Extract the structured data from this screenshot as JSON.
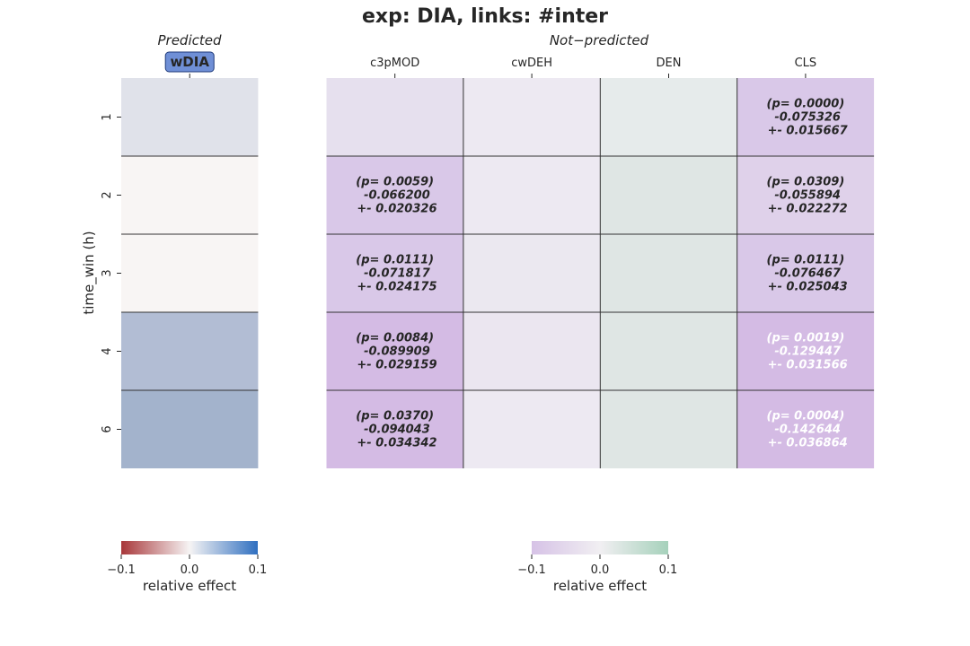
{
  "title": "exp: DIA, links: #inter",
  "ylabel": "time_win (h)",
  "rows": [
    "1",
    "2",
    "3",
    "4",
    "6"
  ],
  "colors": {
    "text": "#262626",
    "cell_border": "#333333",
    "pred_badge_fill": "#6f8fd6",
    "pred_badge_border": "#1f3a7a"
  },
  "chart_data": [
    {
      "type": "heatmap",
      "title": "Predicted",
      "title_style": "italic",
      "columns": [
        "wDIA"
      ],
      "rows": [
        "1",
        "2",
        "3",
        "4",
        "6"
      ],
      "values": [
        [
          0.02
        ],
        [
          -0.005
        ],
        [
          -0.005
        ],
        [
          0.045
        ],
        [
          0.055
        ]
      ],
      "cell_colors": [
        [
          "#e0e2ea"
        ],
        [
          "#f8f5f4"
        ],
        [
          "#f8f5f4"
        ],
        [
          "#b2bdd4"
        ],
        [
          "#a3b3cc"
        ]
      ],
      "annotations": [
        [
          ""
        ],
        [
          ""
        ],
        [
          ""
        ],
        [
          ""
        ],
        [
          ""
        ]
      ],
      "colorbar": {
        "label": "relative effect",
        "range": [
          -0.1,
          0.1
        ],
        "ticks": [
          "−0.1",
          "0.0",
          "0.1"
        ],
        "colors": [
          "#a8373a",
          "#f6f4f4",
          "#2f6fc0"
        ]
      }
    },
    {
      "type": "heatmap",
      "title": "Not−predicted",
      "title_style": "italic",
      "columns": [
        "c3pMOD",
        "cwDEH",
        "DEN",
        "CLS"
      ],
      "rows": [
        "1",
        "2",
        "3",
        "4",
        "6"
      ],
      "values": [
        [
          -0.03,
          -0.015,
          0.01,
          -0.075326
        ],
        [
          -0.0662,
          -0.015,
          0.02,
          -0.055894
        ],
        [
          -0.071817,
          -0.02,
          0.02,
          -0.076467
        ],
        [
          -0.089909,
          -0.02,
          0.02,
          -0.129447
        ],
        [
          -0.094043,
          -0.015,
          0.02,
          -0.142644
        ]
      ],
      "cell_colors": [
        [
          "#e6e0ee",
          "#ede9f2",
          "#e6ebeb",
          "#d9c8e8"
        ],
        [
          "#d9c8e8",
          "#ede9f2",
          "#dfe6e4",
          "#dfd1ea"
        ],
        [
          "#d9c8e8",
          "#ebe8f0",
          "#dfe6e4",
          "#d9c8e8"
        ],
        [
          "#d4bbe4",
          "#ebe6f0",
          "#dfe6e4",
          "#d4bbe4"
        ],
        [
          "#d4bbe4",
          "#ede9f2",
          "#dfe6e4",
          "#d4bbe4"
        ]
      ],
      "annotations": [
        [
          "",
          "",
          "",
          "(p= 0.0000)\n -0.075326\n +- 0.015667"
        ],
        [
          "(p= 0.0059)\n -0.066200\n +- 0.020326",
          "",
          "",
          "(p= 0.0309)\n -0.055894\n +- 0.022272"
        ],
        [
          "(p= 0.0111)\n -0.071817\n +- 0.024175",
          "",
          "",
          "(p= 0.0111)\n -0.076467\n +- 0.025043"
        ],
        [
          "(p= 0.0084)\n -0.089909\n +- 0.029159",
          "",
          "",
          "(p= 0.0019)\n -0.129447\n +- 0.031566"
        ],
        [
          "(p= 0.0370)\n -0.094043\n +- 0.034342",
          "",
          "",
          "(p= 0.0004)\n -0.142644\n +- 0.036864"
        ]
      ],
      "annotation_colors": [
        [
          "#262626",
          "#262626",
          "#262626",
          "#262626"
        ],
        [
          "#262626",
          "#262626",
          "#262626",
          "#262626"
        ],
        [
          "#262626",
          "#262626",
          "#262626",
          "#262626"
        ],
        [
          "#262626",
          "#262626",
          "#262626",
          "#ffffff"
        ],
        [
          "#262626",
          "#262626",
          "#262626",
          "#ffffff"
        ]
      ],
      "colorbar": {
        "label": "relative effect",
        "range": [
          -0.1,
          0.1
        ],
        "ticks": [
          "−0.1",
          "0.0",
          "0.1"
        ],
        "colors": [
          "#d6c2e6",
          "#f1eff2",
          "#a6d1bb"
        ]
      }
    }
  ]
}
